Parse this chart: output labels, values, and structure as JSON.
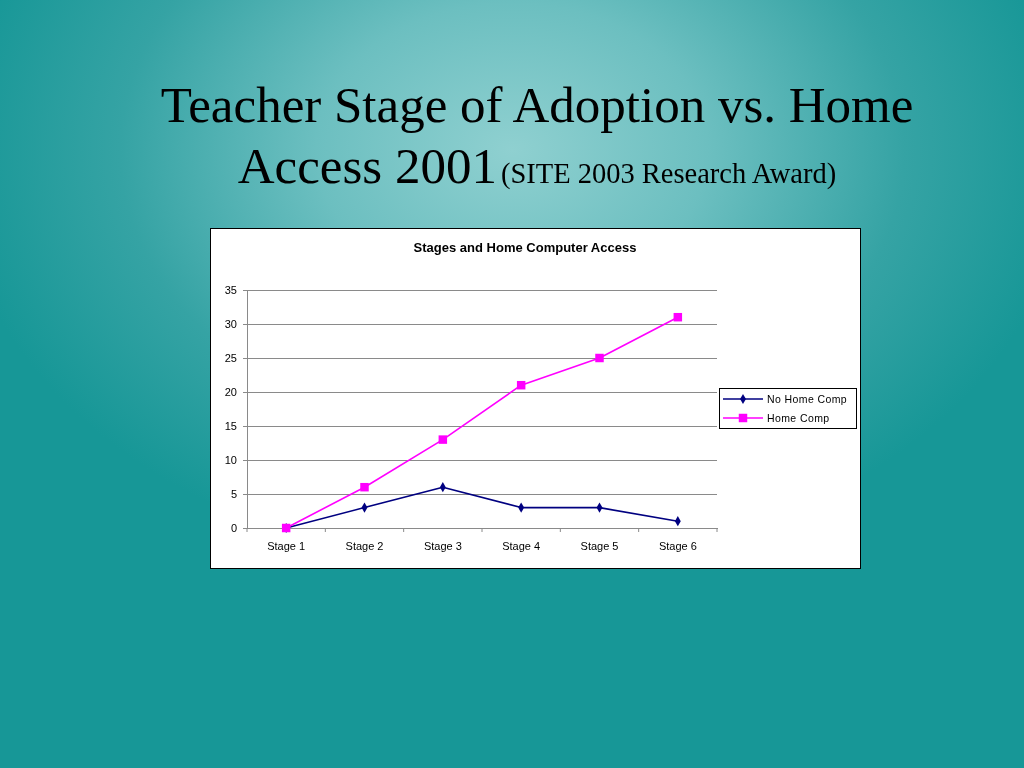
{
  "chart_data": {
    "type": "line",
    "title": "Stages and Home Computer Access",
    "annotations": [
      "Teacher Stage of Adoption vs. Home",
      "Access 2001",
      "(SITE 2003 Research Award)"
    ],
    "categories": [
      "Stage 1",
      "Stage 2",
      "Stage 3",
      "Stage 4",
      "Stage 5",
      "Stage 6"
    ],
    "series": [
      {
        "name": "No Home Comp",
        "color": "#000080",
        "marker": "diamond",
        "values": [
          0,
          3,
          6,
          3,
          3,
          1
        ]
      },
      {
        "name": "Home Comp",
        "color": "#ff00ff",
        "marker": "square",
        "values": [
          0,
          6,
          13,
          21,
          25,
          31
        ]
      }
    ],
    "ylim": [
      0,
      35
    ],
    "yticks": [
      0,
      5,
      10,
      15,
      20,
      25,
      30,
      35
    ],
    "grid": "y",
    "legend": "right"
  }
}
